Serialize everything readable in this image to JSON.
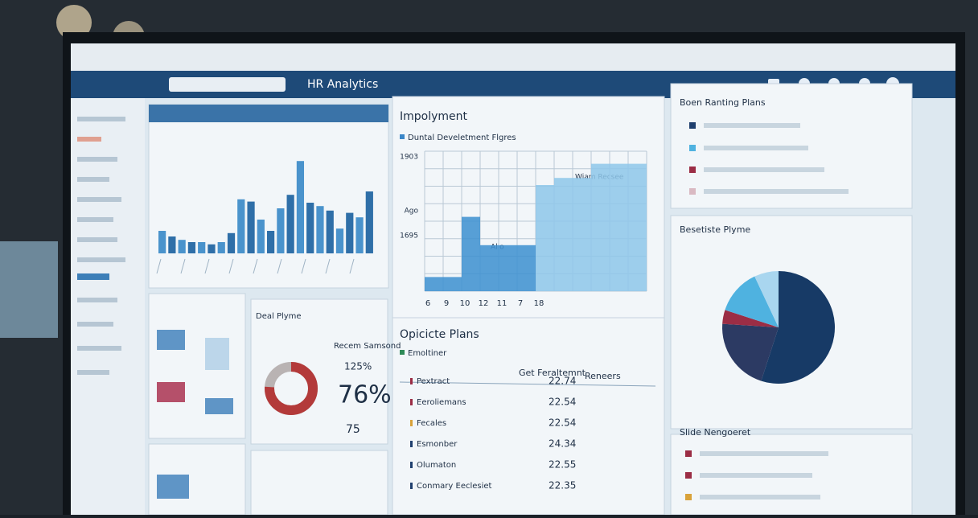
{
  "header": {
    "app_title": "HR Analytics"
  },
  "activity": {
    "values": [
      20,
      15,
      12,
      10,
      10,
      8,
      10,
      18,
      48,
      46,
      30,
      20,
      40,
      52,
      82,
      45,
      42,
      38,
      22,
      36,
      32,
      55
    ]
  },
  "employment": {
    "title": "Impolyment",
    "legend": "Duntal Develetment Flgres",
    "y_labels": [
      "1903",
      "Ago",
      "1695"
    ],
    "x_labels": [
      "6",
      "9",
      "10",
      "12",
      "11",
      "7",
      "18"
    ],
    "annotations": [
      "Wiam Recsee",
      "Allo"
    ],
    "values": [
      8,
      8,
      42,
      26,
      26,
      26,
      60,
      64,
      64,
      72,
      72,
      72
    ]
  },
  "summary": {
    "title": "Deal Plyme",
    "caption": "Recem Samsond",
    "rate": "125%",
    "donut": {
      "value": 76,
      "label": "76%"
    },
    "count": 75
  },
  "plans": {
    "title": "Opicicte Plans",
    "filter": "Emoltiner",
    "columns": [
      "Get Feraltemnt",
      "Reneers"
    ],
    "rows": [
      [
        "Pextract",
        22.74
      ],
      [
        "Eeroliemans",
        22.54
      ],
      [
        "Fecales",
        22.54
      ],
      [
        "Esmonber",
        24.34
      ],
      [
        "Olumaton",
        22.55
      ],
      [
        "Conmary Eeclesiet",
        22.35
      ]
    ]
  },
  "ranking": {
    "title": "Boen Ranting Plans"
  },
  "pie": {
    "title": "Besetiste Plyme",
    "values": [
      55,
      21,
      4,
      13,
      7
    ],
    "colors": [
      "#173a66",
      "#2c3a63",
      "#9b2d45",
      "#4fb2e0",
      "#a9d6ef"
    ]
  },
  "management": {
    "title": "Slide Nengoeret"
  }
}
